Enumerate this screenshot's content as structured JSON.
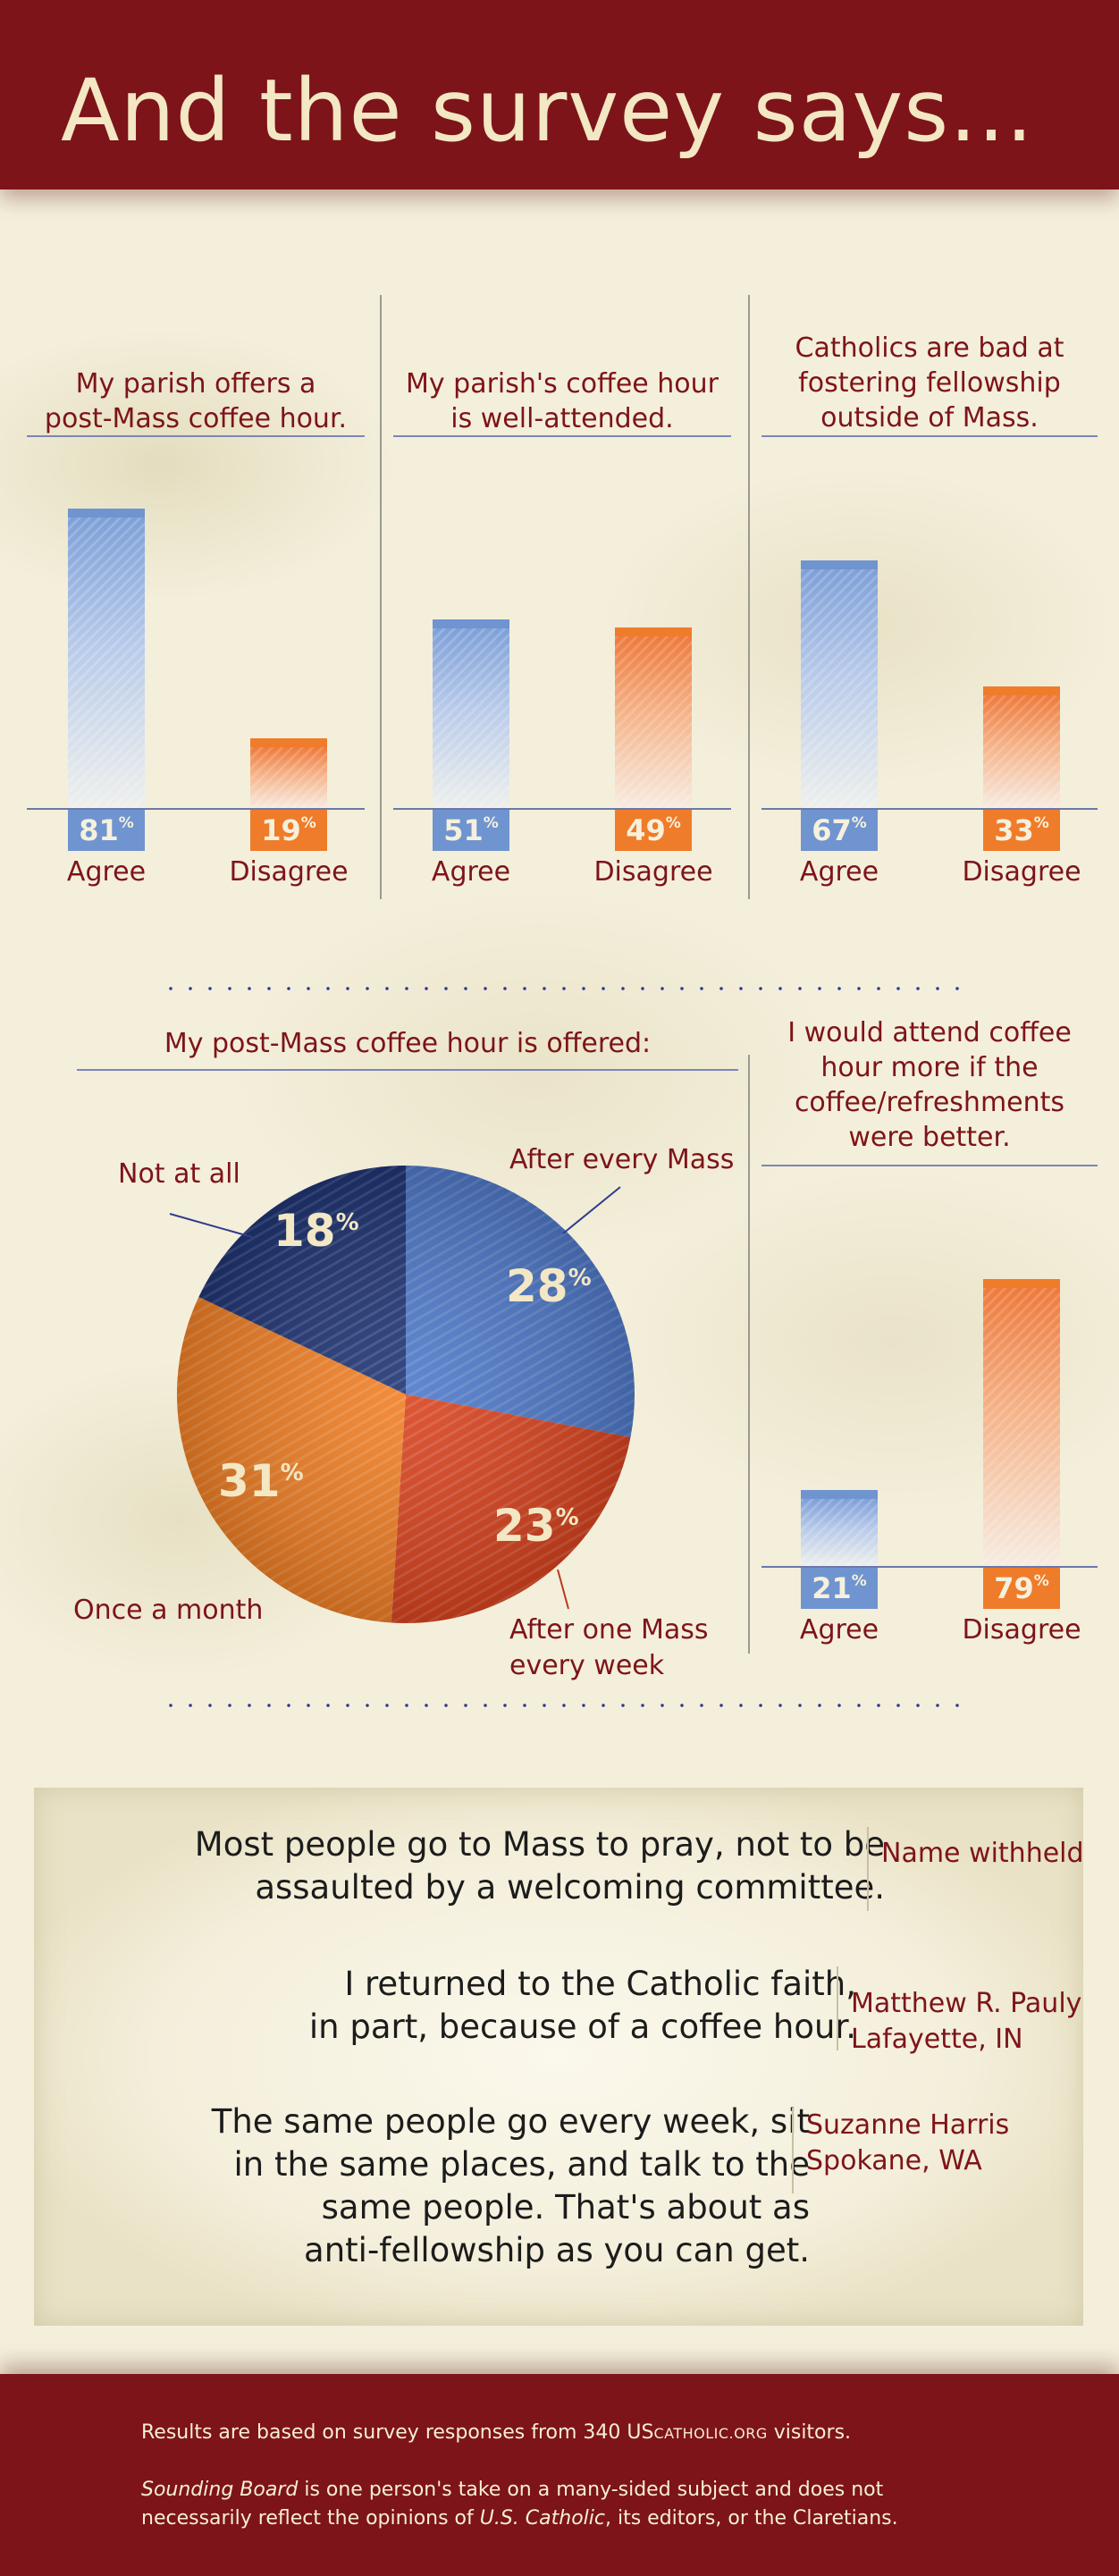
{
  "header": {
    "title": "And the survey says..."
  },
  "chart_data": [
    {
      "type": "bar",
      "title": "My parish offers a post-Mass coffee hour.",
      "categories": [
        "Agree",
        "Disagree"
      ],
      "values": [
        81,
        19
      ],
      "unit": "%",
      "colors": [
        "#6f94d0",
        "#ef7c2a"
      ],
      "ylim": [
        0,
        100
      ]
    },
    {
      "type": "bar",
      "title": "My parish's coffee hour is well-attended.",
      "categories": [
        "Agree",
        "Disagree"
      ],
      "values": [
        51,
        49
      ],
      "unit": "%",
      "colors": [
        "#6f94d0",
        "#ef7c2a"
      ],
      "ylim": [
        0,
        100
      ]
    },
    {
      "type": "bar",
      "title": "Catholics are bad at fostering fellowship outside of Mass.",
      "categories": [
        "Agree",
        "Disagree"
      ],
      "values": [
        67,
        33
      ],
      "unit": "%",
      "colors": [
        "#6f94d0",
        "#ef7c2a"
      ],
      "ylim": [
        0,
        100
      ]
    },
    {
      "type": "pie",
      "title": "My post-Mass coffee hour is offered:",
      "slices": [
        {
          "label": "After every Mass",
          "value": 28,
          "color": "#4f79c9"
        },
        {
          "label": "After one Mass every week",
          "value": 23,
          "color": "#d8431f"
        },
        {
          "label": "Once a month",
          "value": 31,
          "color": "#f07f25"
        },
        {
          "label": "Not at all",
          "value": 18,
          "color": "#1f3474"
        }
      ],
      "unit": "%"
    },
    {
      "type": "bar",
      "title": "I would attend coffee hour more if the coffee/refreshments were better.",
      "categories": [
        "Agree",
        "Disagree"
      ],
      "values": [
        21,
        79
      ],
      "unit": "%",
      "colors": [
        "#6f94d0",
        "#ef7c2a"
      ],
      "ylim": [
        0,
        100
      ]
    }
  ],
  "charts": {
    "c1": {
      "title_lines": [
        "My parish offers a",
        "post-Mass coffee hour."
      ],
      "agree": "81",
      "disagree": "19"
    },
    "c2": {
      "title_lines": [
        "My parish's coffee hour",
        "is well-attended."
      ],
      "agree": "51",
      "disagree": "49"
    },
    "c3": {
      "title_lines": [
        "Catholics are bad at",
        "fostering fellowship",
        "outside of Mass."
      ],
      "agree": "67",
      "disagree": "33"
    },
    "pie": {
      "title": "My post-Mass coffee hour is offered:",
      "labels": {
        "after_every": "After every Mass",
        "after_one_1": "After one Mass",
        "after_one_2": "every week",
        "once_month": "Once a month",
        "not_at_all": "Not at all"
      },
      "pct": {
        "after_every": "28",
        "after_one": "23",
        "once_month": "31",
        "not_at_all": "18"
      }
    },
    "c5": {
      "title_lines": [
        "I would attend coffee",
        "hour more if the",
        "coffee/refreshments",
        "were better."
      ],
      "agree": "21",
      "disagree": "79"
    },
    "agree_label": "Agree",
    "disagree_label": "Disagree",
    "pct_symbol": "%"
  },
  "quotes": [
    {
      "lines": [
        "Most people go to Mass to pray, not to be",
        "assaulted by a welcoming committee."
      ],
      "attr": [
        "Name withheld"
      ]
    },
    {
      "lines": [
        "I returned to the Catholic faith,",
        "in part, because of a coffee hour."
      ],
      "attr": [
        "Matthew R. Pauly",
        "Lafayette, IN"
      ]
    },
    {
      "lines": [
        "The same people go every week, sit",
        "in the same places, and talk to the",
        "same people. That's about as",
        "anti-fellowship as you can get."
      ],
      "attr": [
        "Suzanne Harris",
        "Spokane, WA"
      ]
    }
  ],
  "footer": {
    "line1_pre": "Results are based on survey responses from 340 US",
    "line1_sc": "CATHOLIC.ORG",
    "line1_post": " visitors.",
    "line2_italic": "Sounding Board",
    "line2_rest": " is one person's take on a many-sided subject and does not",
    "line3_pre": "necessarily reflect the opinions of ",
    "line3_italic": "U.S. Catholic",
    "line3_post": ", its editors, or the Claretians."
  }
}
